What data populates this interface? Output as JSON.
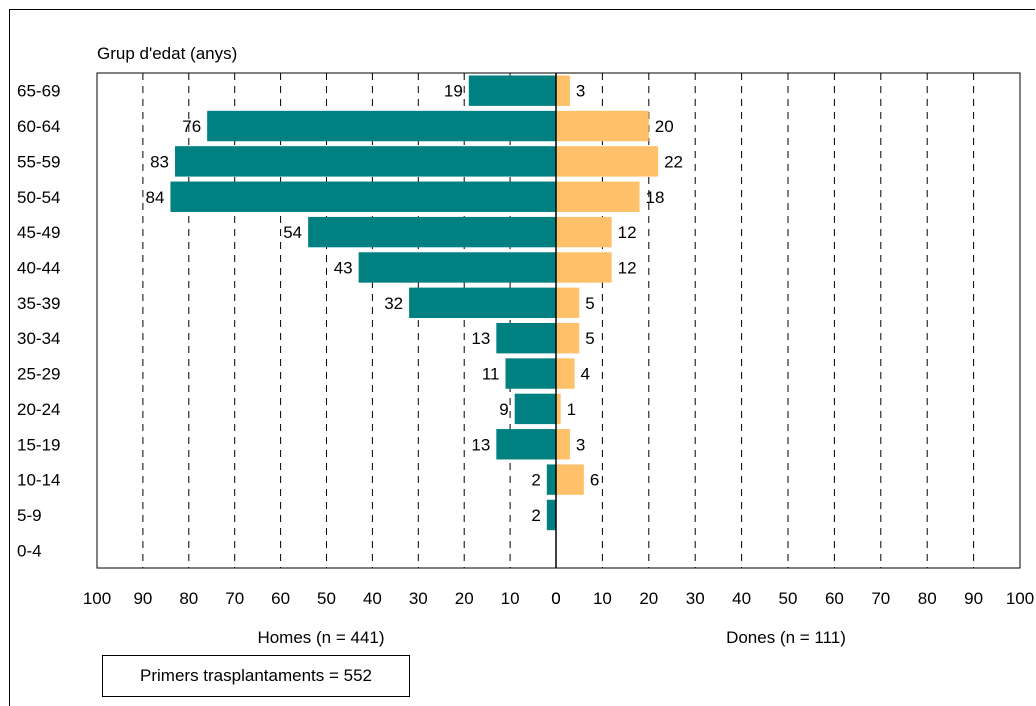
{
  "chart_data": {
    "type": "bar",
    "orientation": "horizontal-population-pyramid",
    "title": "",
    "ylabel": "Grup d'edat (anys)",
    "categories": [
      "65-69",
      "60-64",
      "55-59",
      "50-54",
      "45-49",
      "40-44",
      "35-39",
      "30-34",
      "25-29",
      "20-24",
      "15-19",
      "10-14",
      "5-9",
      "0-4"
    ],
    "series": [
      {
        "name": "Homes (n = 441)",
        "values": [
          19,
          76,
          83,
          84,
          54,
          43,
          32,
          13,
          11,
          9,
          13,
          2,
          2,
          null
        ],
        "color": "#008080",
        "side": "left"
      },
      {
        "name": "Dones (n = 111)",
        "values": [
          3,
          20,
          22,
          18,
          12,
          12,
          5,
          5,
          4,
          1,
          3,
          6,
          null,
          null
        ],
        "color": "#FFC06A",
        "side": "right"
      }
    ],
    "xlim": [
      0,
      100
    ],
    "xticks": [
      0,
      10,
      20,
      30,
      40,
      50,
      60,
      70,
      80,
      90,
      100
    ],
    "xtick_labels_left": [
      "100",
      "90",
      "80",
      "70",
      "60",
      "50",
      "40",
      "30",
      "20",
      "10",
      "0"
    ],
    "xtick_labels_right": [
      "0",
      "10",
      "20",
      "30",
      "40",
      "50",
      "60",
      "70",
      "80",
      "90",
      "100"
    ],
    "grid": "vertical-dashed"
  },
  "summary": {
    "text": "Primers trasplantaments = 552"
  }
}
